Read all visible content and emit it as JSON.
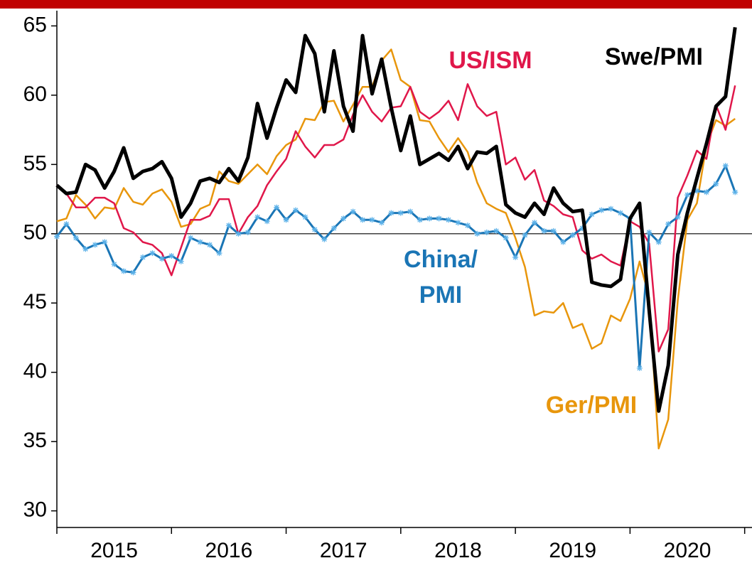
{
  "chart_data": {
    "type": "line",
    "categories": [
      null,
      null,
      null,
      null,
      null,
      null,
      "2015",
      null,
      null,
      null,
      null,
      null,
      null,
      null,
      null,
      null,
      null,
      null,
      "2016",
      null,
      null,
      null,
      null,
      null,
      null,
      null,
      null,
      null,
      null,
      null,
      "2017",
      null,
      null,
      null,
      null,
      null,
      null,
      null,
      null,
      null,
      null,
      null,
      "2018",
      null,
      null,
      null,
      null,
      null,
      null,
      null,
      null,
      null,
      null,
      null,
      "2019",
      null,
      null,
      null,
      null,
      null,
      null,
      null,
      null,
      null,
      null,
      null,
      "2020",
      null,
      null,
      null,
      null,
      null
    ],
    "ylim": [
      28.8,
      66.1
    ],
    "yticks": [
      30,
      35,
      40,
      45,
      50,
      55,
      60,
      65
    ],
    "hline": 50,
    "series": [
      {
        "name": "Ger/PMI",
        "color": "#e8960c",
        "values": [
          50.9,
          51.1,
          52.8,
          52.1,
          51.1,
          51.9,
          51.8,
          53.3,
          52.3,
          52.1,
          52.9,
          53.2,
          52.3,
          50.5,
          50.7,
          51.8,
          52.1,
          54.5,
          53.8,
          53.6,
          54.3,
          55.0,
          54.3,
          55.6,
          56.4,
          56.8,
          58.3,
          58.2,
          59.5,
          59.6,
          58.1,
          59.3,
          60.6,
          60.6,
          62.5,
          63.3,
          61.1,
          60.6,
          58.2,
          58.1,
          56.9,
          55.9,
          56.9,
          55.9,
          53.7,
          52.2,
          51.8,
          51.5,
          49.7,
          47.6,
          44.1,
          44.4,
          44.3,
          45.0,
          43.2,
          43.5,
          41.7,
          42.1,
          44.1,
          43.7,
          45.3,
          48.0,
          45.4,
          34.5,
          36.6,
          45.2,
          51.0,
          52.2,
          56.4,
          58.2,
          57.8,
          58.3
        ]
      },
      {
        "name": "US/ISM",
        "color": "#e0174a",
        "values": [
          53.5,
          52.9,
          51.9,
          51.9,
          52.6,
          52.6,
          52.2,
          50.4,
          50.1,
          49.4,
          49.2,
          48.6,
          47.0,
          49.0,
          51.0,
          51.0,
          51.3,
          52.5,
          52.5,
          50.0,
          51.2,
          52.0,
          53.5,
          54.5,
          55.4,
          57.4,
          56.3,
          55.5,
          56.4,
          56.4,
          56.8,
          58.6,
          60.0,
          58.8,
          58.1,
          59.1,
          59.2,
          60.6,
          58.8,
          58.3,
          58.8,
          59.6,
          58.2,
          60.8,
          59.2,
          58.5,
          58.8,
          55.0,
          55.5,
          53.9,
          54.6,
          52.4,
          52.0,
          51.4,
          51.2,
          48.8,
          48.2,
          48.5,
          48.0,
          47.7,
          50.9,
          50.5,
          49.3,
          41.5,
          43.1,
          52.6,
          54.2,
          56.0,
          55.4,
          59.3,
          57.5,
          60.7
        ]
      },
      {
        "name": "China/\nPMI",
        "color": "#1a75b5",
        "values": [
          49.8,
          50.7,
          49.7,
          48.9,
          49.2,
          49.4,
          47.8,
          47.3,
          47.2,
          48.3,
          48.6,
          48.2,
          48.4,
          48.0,
          49.7,
          49.4,
          49.2,
          48.6,
          50.6,
          50.0,
          50.1,
          51.2,
          50.9,
          51.9,
          51.0,
          51.7,
          51.2,
          50.3,
          49.6,
          50.4,
          51.1,
          51.6,
          51.0,
          51.0,
          50.8,
          51.5,
          51.5,
          51.6,
          51.0,
          51.1,
          51.1,
          51.0,
          50.8,
          50.6,
          50.0,
          50.1,
          50.2,
          49.7,
          48.3,
          49.9,
          50.8,
          50.2,
          50.2,
          49.4,
          49.9,
          50.4,
          51.4,
          51.7,
          51.8,
          51.5,
          51.1,
          40.3,
          50.1,
          49.4,
          50.7,
          51.2,
          52.8,
          53.1,
          53.0,
          53.6,
          54.9,
          53.0
        ]
      },
      {
        "name": "Swe/PMI",
        "color": "#000000",
        "values": [
          53.5,
          52.9,
          53.0,
          55.0,
          54.6,
          53.3,
          54.5,
          56.2,
          54.0,
          54.5,
          54.7,
          55.2,
          54.0,
          51.2,
          52.2,
          53.8,
          54.0,
          53.7,
          54.7,
          53.8,
          55.5,
          59.4,
          56.9,
          59.1,
          61.1,
          60.2,
          64.3,
          63.0,
          58.8,
          63.2,
          59.2,
          57.4,
          64.3,
          60.1,
          62.6,
          59.1,
          56.0,
          58.5,
          55.0,
          55.4,
          55.8,
          55.3,
          56.3,
          54.7,
          55.9,
          55.8,
          56.3,
          52.1,
          51.5,
          51.2,
          52.2,
          51.4,
          53.3,
          52.2,
          51.6,
          51.7,
          46.5,
          46.3,
          46.2,
          46.7,
          51.1,
          52.2,
          44.5,
          37.2,
          40.5,
          48.5,
          51.5,
          54.0,
          56.5,
          59.2,
          59.9,
          64.9
        ]
      }
    ]
  }
}
